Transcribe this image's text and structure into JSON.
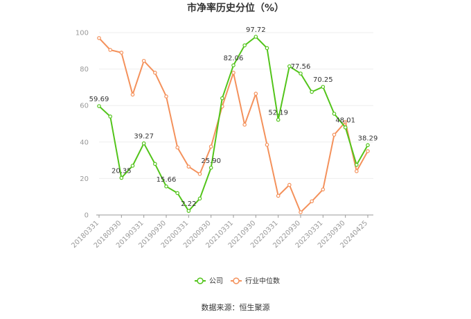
{
  "chart_data": {
    "type": "line",
    "title": "市净率历史分位（%）",
    "source": "数据来源：恒生聚源",
    "ylim": [
      0,
      100
    ],
    "yticks": [
      0,
      20,
      40,
      60,
      80,
      100
    ],
    "grid": true,
    "legend_position": "bottom-center",
    "x_tick_labels": [
      "20180331",
      "20180930",
      "20190331",
      "20190930",
      "20200331",
      "20200930",
      "20210331",
      "20210930",
      "20220331",
      "20220930",
      "20230331",
      "20230930",
      "20240425"
    ],
    "x": [
      "20180331",
      "20180630",
      "20180930",
      "20181231",
      "20190331",
      "20190630",
      "20190930",
      "20191231",
      "20200331",
      "20200630",
      "20200930",
      "20201231",
      "20210331",
      "20210630",
      "20210930",
      "20211231",
      "20220331",
      "20220630",
      "20220930",
      "20221231",
      "20230331",
      "20230630",
      "20230930",
      "20231231",
      "20240425"
    ],
    "series": [
      {
        "name": "公司",
        "color": "#52c41a",
        "values": [
          59.69,
          54,
          20.35,
          27,
          39.27,
          28,
          15.66,
          12,
          2.22,
          9,
          25.9,
          64,
          82.06,
          93,
          97.72,
          91.5,
          52.19,
          81.5,
          77.56,
          67.5,
          70.25,
          55.5,
          48.01,
          27.5,
          38.29
        ],
        "labels": {
          "0": "59.69",
          "2": "20.35",
          "4": "39.27",
          "6": "15.66",
          "8": "2.22",
          "10": "25.90",
          "12": "82.06",
          "14": "97.72",
          "16": "52.19",
          "18": "77.56",
          "20": "70.25",
          "22": "48.01",
          "24": "38.29"
        }
      },
      {
        "name": "行业中位数",
        "color": "#f4915b",
        "values": [
          97,
          90.5,
          89,
          66,
          84.5,
          78,
          65,
          37,
          26.5,
          22.5,
          37.5,
          59.5,
          78,
          49.5,
          66.5,
          38.5,
          10.5,
          16.5,
          1.5,
          7.5,
          14,
          44,
          51,
          24,
          35
        ]
      }
    ]
  }
}
